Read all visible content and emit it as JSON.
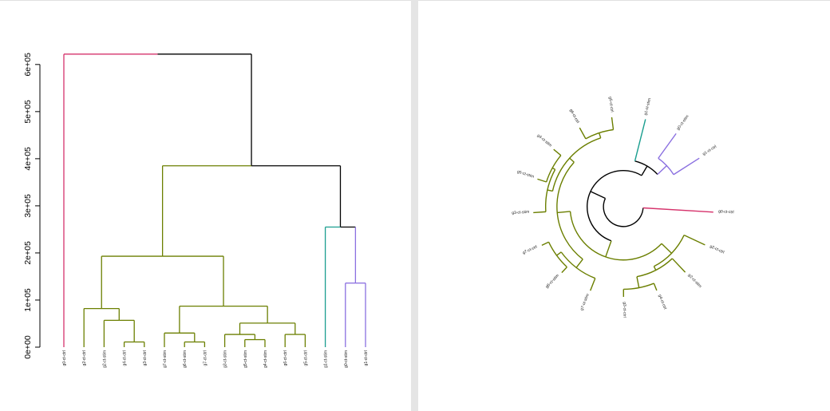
{
  "colors": {
    "black": "#000000",
    "pink": "#d6336c",
    "olive": "#6b7f00",
    "teal": "#1a9e8f",
    "purple": "#8a6fe0"
  },
  "chart_data": [
    {
      "type": "dendrogram",
      "orientation": "vertical",
      "title": "",
      "ylabel": "",
      "ylim": [
        0,
        620000
      ],
      "y_ticks": [
        {
          "value": 0,
          "label": "0e+00"
        },
        {
          "value": 100000,
          "label": "1e+05"
        },
        {
          "value": 200000,
          "label": "2e+05"
        },
        {
          "value": 300000,
          "label": "3e+05"
        },
        {
          "value": 400000,
          "label": "4e+05"
        },
        {
          "value": 500000,
          "label": "5e+05"
        },
        {
          "value": 600000,
          "label": "6e+05"
        }
      ],
      "leaves": [
        "g0-ct-ctrl",
        "g2-ct-ctrl",
        "g2-ct-stim",
        "g4-ct-ctrl",
        "g3-ct-ctrl",
        "g7-ct-stim",
        "g6-ct-stim",
        "g7-ct-ctrl",
        "g3-ct-stim",
        "g5-ct-stim",
        "g4-ct-stim",
        "g6-ct-ctrl",
        "g5-ct-ctrl",
        "g1-ct-stim",
        "g0-ct-stim",
        "g1-ct-ctrl"
      ],
      "leaf_groups": [
        "pink",
        "olive",
        "olive",
        "olive",
        "olive",
        "olive",
        "olive",
        "olive",
        "olive",
        "olive",
        "olive",
        "olive",
        "olive",
        "teal",
        "purple",
        "purple"
      ],
      "merges": [
        {
          "a": 3,
          "b": 4,
          "height": 11000
        },
        {
          "a": 6,
          "b": 7,
          "height": 11000
        },
        {
          "a": 9,
          "b": 10,
          "height": 16000
        },
        {
          "a": 8,
          "b": -3,
          "height": 27000
        },
        {
          "a": 11,
          "b": 12,
          "height": 27000
        },
        {
          "a": 5,
          "b": -2,
          "height": 30000
        },
        {
          "a": 2,
          "b": -1,
          "height": 57000
        },
        {
          "a": -4,
          "b": -5,
          "height": 51000
        },
        {
          "a": 1,
          "b": -7,
          "height": 82000
        },
        {
          "a": -6,
          "b": -8,
          "height": 87000
        },
        {
          "a": 14,
          "b": 15,
          "height": 136000
        },
        {
          "a": -9,
          "b": -10,
          "height": 193000
        },
        {
          "a": 13,
          "b": -11,
          "height": 255000
        },
        {
          "a": -12,
          "b": -13,
          "height": 385000
        },
        {
          "a": 0,
          "b": -14,
          "height": 622000
        }
      ]
    },
    {
      "type": "circular-dendrogram",
      "labels_shown": [
        "g0-ct-ctrl",
        "g2-ct-ctrl",
        "g2-ct-stim",
        "g4-ct-ctrl",
        "g3-ct-ctrl",
        "g7-ct-stim",
        "g6-ct-stim",
        "g7-ct-ctrl",
        "g3-ct-stim",
        "g5-ct-stim",
        "g4-ct-stim",
        "g6-ct-ctrl",
        "g5-ct-ctrl",
        "g1-ct-stim",
        "g0-ct-stim",
        "g1-ct-ctrl"
      ]
    }
  ]
}
